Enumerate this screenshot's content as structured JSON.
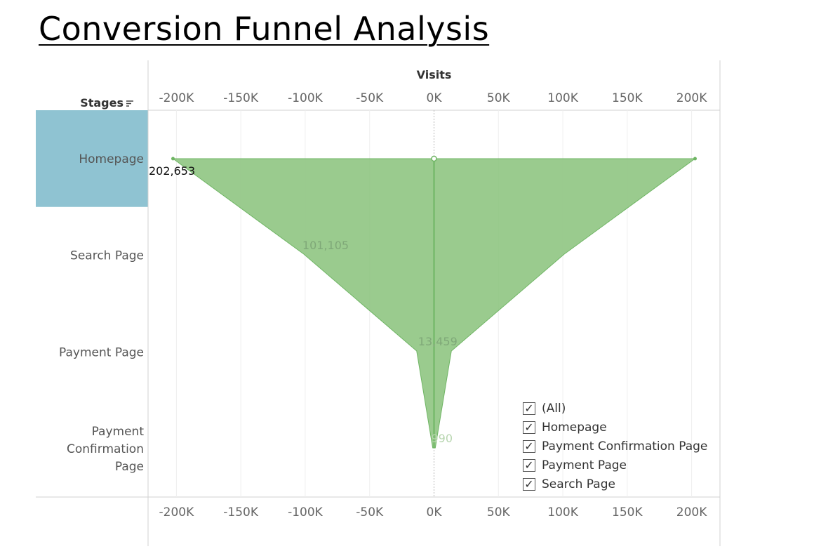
{
  "title": "Conversion Funnel Analysis",
  "chart_data": {
    "type": "area",
    "x_axis_title": "Visits",
    "y_axis_title": "Stages",
    "x_ticks": [
      "-200K",
      "-150K",
      "-100K",
      "-50K",
      "0K",
      "50K",
      "100K",
      "150K",
      "200K"
    ],
    "x_tick_values": [
      -200000,
      -150000,
      -100000,
      -50000,
      0,
      50000,
      100000,
      150000,
      200000
    ],
    "xlim": [
      -222000,
      222000
    ],
    "stage_lines": [
      [
        "Homepage"
      ],
      [
        "Search Page"
      ],
      [
        "Payment Page"
      ],
      [
        "Payment",
        "Confirmation",
        "Page"
      ]
    ],
    "categories": [
      "Homepage",
      "Search Page",
      "Payment Page",
      "Payment Confirmation Page"
    ],
    "values": [
      202653,
      101105,
      13459,
      990
    ],
    "data_labels": [
      "202,653",
      "101,105",
      "13,459",
      "990"
    ],
    "highlighted_stage": "Homepage",
    "fill_color": "#8cc47e",
    "line_color": "#6fb564",
    "highlight_color": "#8fc3d2",
    "grid": true
  },
  "legend": {
    "items": [
      {
        "label": "(All)",
        "checked": true
      },
      {
        "label": "Homepage",
        "checked": true
      },
      {
        "label": "Payment Confirmation Page",
        "checked": true
      },
      {
        "label": "Payment Page",
        "checked": true
      },
      {
        "label": "Search Page",
        "checked": true
      }
    ]
  }
}
